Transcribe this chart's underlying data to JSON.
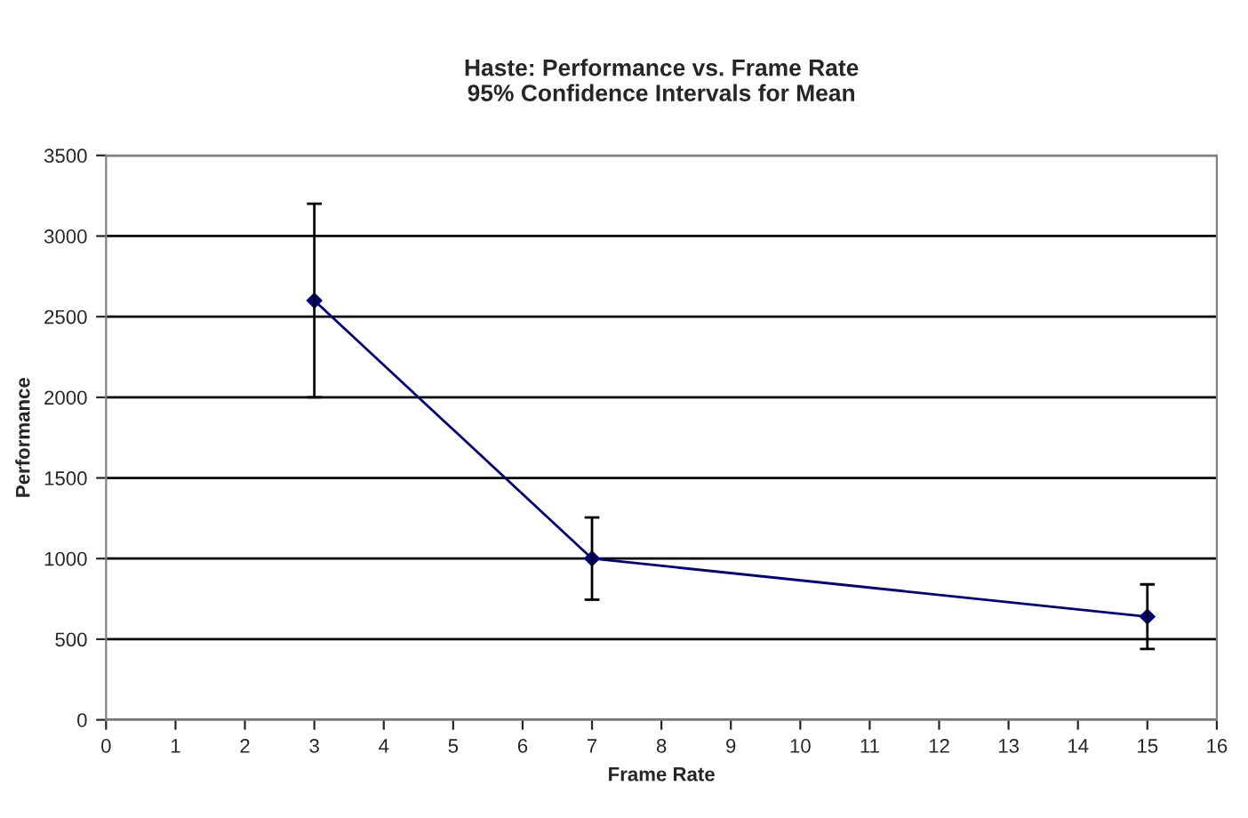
{
  "chart_data": {
    "type": "line",
    "title": "Haste: Performance vs. Frame Rate\n95% Confidence Intervals for Mean",
    "xlabel": "Frame Rate",
    "ylabel": "Performance",
    "x": [
      3,
      7,
      15
    ],
    "series": [
      {
        "color": "#000080",
        "values": [
          2600,
          1000,
          640
        ],
        "errors": [
          600,
          255,
          200
        ]
      }
    ],
    "xlim": [
      0,
      16
    ],
    "xticks": [
      0,
      1,
      2,
      3,
      4,
      5,
      6,
      7,
      8,
      9,
      10,
      11,
      12,
      13,
      14,
      15,
      16
    ],
    "ylim": [
      0,
      3500
    ],
    "yticks": [
      0,
      500,
      1000,
      1500,
      2000,
      2500,
      3000,
      3500
    ],
    "grid": "y",
    "marker": "diamond",
    "line_style": "solid",
    "legend": false
  }
}
